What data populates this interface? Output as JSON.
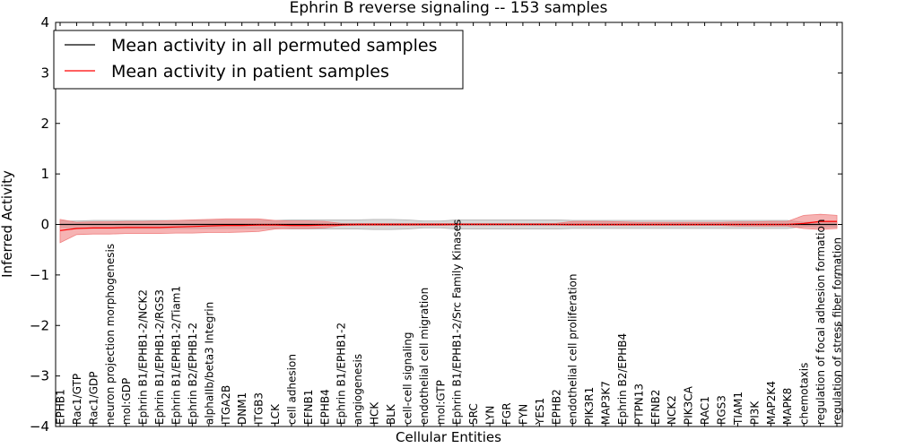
{
  "chart_data": {
    "type": "line",
    "title": "Ephrin B reverse signaling -- 153 samples",
    "xlabel": "Cellular Entities",
    "ylabel": "Inferred Activity",
    "ylim": [
      -4,
      4
    ],
    "yticks": [
      -4,
      -3,
      -2,
      -1,
      0,
      1,
      2,
      3,
      4
    ],
    "ytick_labels": [
      "−4",
      "−3",
      "−2",
      "−1",
      "0",
      "1",
      "2",
      "3",
      "4"
    ],
    "grid": false,
    "legend_position": "top-left",
    "categories": [
      "EPHB1",
      "Rac1/GTP",
      "Rac1/GDP",
      "neuron projection morphogenesis",
      "mol:GDP",
      "Ephrin B1/EPHB1-2/NCK2",
      "Ephrin B1/EPHB1-2/RGS3",
      "Ephrin B1/EPHB1-2/Tiam1",
      "Ephrin B2/EPHB1-2",
      "alphaIIb/beta3 Integrin",
      "ITGA2B",
      "DNM1",
      "ITGB3",
      "LCK",
      "cell adhesion",
      "EFNB1",
      "EPHB4",
      "Ephrin B1/EPHB1-2",
      "angiogenesis",
      "HCK",
      "BLK",
      "cell-cell signaling",
      "endothelial cell migration",
      "mol:GTP",
      "Ephrin B1/EPHB1-2/Src Family Kinases",
      "SRC",
      "LYN",
      "FGR",
      "FYN",
      "YES1",
      "EPHB2",
      "endothelial cell proliferation",
      "PIK3R1",
      "MAP3K7",
      "Ephrin B2/EPHB4",
      "PTPN13",
      "EFNB2",
      "NCK2",
      "PIK3CA",
      "RAC1",
      "RGS3",
      "TIAM1",
      "PI3K",
      "MAP2K4",
      "MAPK8",
      "chemotaxis",
      "regulation of focal adhesion formation",
      "regulation of stress fiber formation"
    ],
    "series": [
      {
        "name": "Mean activity in all permuted samples",
        "color": "#000000",
        "band_color": "#b0b0b0",
        "values": [
          0,
          0,
          0,
          0,
          0,
          0,
          0,
          0,
          0,
          0,
          0,
          0,
          0,
          0,
          0,
          0,
          0,
          0,
          0,
          0,
          0,
          0,
          0,
          0,
          0,
          0,
          0,
          0,
          0,
          0,
          0,
          0,
          0,
          0,
          0,
          0,
          0,
          0,
          0,
          0,
          0,
          0,
          0,
          0,
          0,
          0,
          0,
          0
        ],
        "band_lower": [
          -0.06,
          -0.07,
          -0.08,
          -0.08,
          -0.08,
          -0.08,
          -0.08,
          -0.08,
          -0.08,
          -0.08,
          -0.08,
          -0.08,
          -0.08,
          -0.08,
          -0.09,
          -0.09,
          -0.09,
          -0.09,
          -0.09,
          -0.1,
          -0.1,
          -0.09,
          -0.07,
          -0.07,
          -0.09,
          -0.09,
          -0.09,
          -0.09,
          -0.09,
          -0.09,
          -0.09,
          -0.08,
          -0.08,
          -0.08,
          -0.08,
          -0.08,
          -0.08,
          -0.08,
          -0.08,
          -0.08,
          -0.08,
          -0.08,
          -0.08,
          -0.08,
          -0.08,
          -0.04,
          -0.05,
          -0.05
        ],
        "band_upper": [
          0.07,
          0.07,
          0.08,
          0.08,
          0.08,
          0.08,
          0.08,
          0.08,
          0.08,
          0.08,
          0.08,
          0.08,
          0.08,
          0.08,
          0.09,
          0.09,
          0.09,
          0.09,
          0.09,
          0.1,
          0.1,
          0.09,
          0.07,
          0.07,
          0.09,
          0.09,
          0.09,
          0.09,
          0.09,
          0.09,
          0.09,
          0.08,
          0.08,
          0.08,
          0.08,
          0.08,
          0.08,
          0.08,
          0.08,
          0.08,
          0.08,
          0.08,
          0.08,
          0.08,
          0.08,
          0.04,
          0.05,
          0.05
        ]
      },
      {
        "name": "Mean activity in patient samples",
        "color": "#ff0000",
        "band_color": "#f08080",
        "values": [
          -0.12,
          -0.08,
          -0.07,
          -0.07,
          -0.06,
          -0.06,
          -0.06,
          -0.05,
          -0.04,
          -0.03,
          -0.02,
          -0.02,
          -0.01,
          -0.01,
          -0.02,
          -0.02,
          -0.01,
          -0.01,
          0,
          0,
          0,
          0,
          0,
          0,
          0,
          0,
          0,
          0,
          0,
          0,
          0,
          0,
          0,
          0,
          0,
          0,
          0,
          0,
          0,
          0,
          0,
          0,
          0,
          0,
          0,
          0.02,
          0.06,
          0.06
        ],
        "band_lower": [
          -0.36,
          -0.2,
          -0.19,
          -0.19,
          -0.18,
          -0.18,
          -0.18,
          -0.17,
          -0.17,
          -0.16,
          -0.16,
          -0.15,
          -0.14,
          -0.09,
          -0.08,
          -0.08,
          -0.07,
          -0.02,
          -0.02,
          -0.02,
          -0.02,
          -0.02,
          -0.02,
          -0.02,
          -0.01,
          -0.01,
          -0.01,
          -0.01,
          -0.01,
          -0.01,
          -0.01,
          -0.02,
          -0.02,
          -0.02,
          -0.02,
          -0.02,
          -0.02,
          -0.02,
          -0.02,
          -0.02,
          -0.02,
          -0.03,
          -0.03,
          -0.03,
          -0.03,
          -0.08,
          -0.1,
          -0.08
        ],
        "band_upper": [
          0.1,
          0.04,
          0.05,
          0.05,
          0.06,
          0.06,
          0.07,
          0.08,
          0.09,
          0.1,
          0.11,
          0.11,
          0.11,
          0.08,
          0.07,
          0.07,
          0.06,
          0.02,
          0.02,
          0.02,
          0.02,
          0.02,
          0.02,
          0.02,
          0.02,
          0.02,
          0.02,
          0.02,
          0.02,
          0.02,
          0.02,
          0.06,
          0.06,
          0.06,
          0.05,
          0.04,
          0.04,
          0.04,
          0.04,
          0.04,
          0.04,
          0.05,
          0.05,
          0.06,
          0.06,
          0.18,
          0.2,
          0.18
        ]
      }
    ]
  }
}
